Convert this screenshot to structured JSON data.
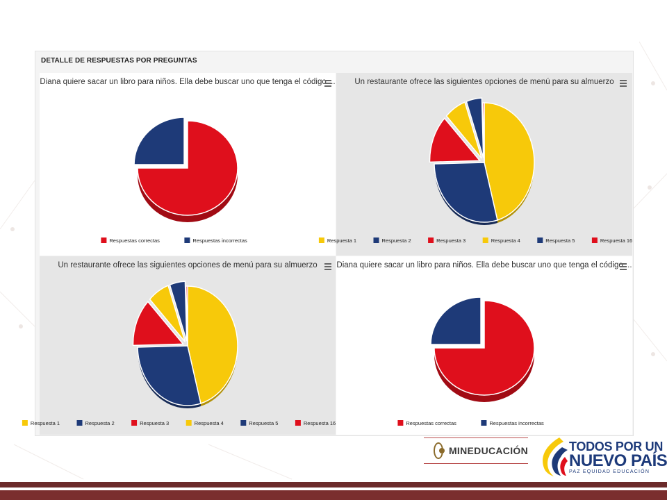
{
  "page": {
    "panel_title": "DETALLE DE RESPUESTAS POR PREGUNTAS"
  },
  "logos": {
    "mineducacion": "MINEDUCACIÓN",
    "todos_line1": "TODOS POR UN",
    "todos_line2": "NUEVO PAÍS",
    "todos_line3": "PAZ  EQUIDAD  EDUCACIÓN"
  },
  "colors": {
    "red": "#df0f1c",
    "navy": "#1e3a78",
    "yellow": "#f7c90a",
    "chart_bg_gray": "#e6e6e6",
    "chart_bg_white": "#ffffff",
    "footer_brown": "#7a2e2e"
  },
  "chart_data": [
    {
      "type": "pie",
      "style": "3d",
      "title": "Diana quiere sacar un libro para niños. Ella debe buscar uno que tenga el código ...",
      "categories": [
        "Respuestas correctas",
        "Respuestas incorrectas"
      ],
      "values": [
        75,
        25
      ],
      "colors": [
        "#df0f1c",
        "#1e3a78"
      ],
      "exploded": [
        false,
        true
      ],
      "legend": "bottom",
      "background": "#ffffff"
    },
    {
      "type": "pie",
      "style": "3d",
      "title": "Un restaurante ofrece las siguientes opciones de menú para su almuerzo",
      "categories": [
        "Respuesta 1",
        "Respuesta 2",
        "Respuesta 3",
        "Respuesta 4",
        "Respuesta 5",
        "Respuesta 16"
      ],
      "values": [
        46,
        29,
        13,
        7,
        5,
        0.5
      ],
      "colors": [
        "#f7c90a",
        "#1e3a78",
        "#df0f1c",
        "#f7c90a",
        "#1e3a78",
        "#df0f1c"
      ],
      "exploded": [
        false,
        false,
        true,
        true,
        true,
        false
      ],
      "legend": "bottom",
      "background": "#e6e6e6"
    },
    {
      "type": "pie",
      "style": "3d",
      "title": "Un restaurante ofrece las siguientes opciones de menú para su almuerzo",
      "categories": [
        "Respuesta 1",
        "Respuesta 2",
        "Respuesta 3",
        "Respuesta 4",
        "Respuesta 5",
        "Respuesta 16"
      ],
      "values": [
        46,
        29,
        13,
        7,
        5,
        0.5
      ],
      "colors": [
        "#f7c90a",
        "#1e3a78",
        "#df0f1c",
        "#f7c90a",
        "#1e3a78",
        "#df0f1c"
      ],
      "exploded": [
        false,
        false,
        true,
        true,
        true,
        false
      ],
      "legend": "bottom",
      "background": "#e6e6e6"
    },
    {
      "type": "pie",
      "style": "3d",
      "title": "Diana quiere sacar un libro para niños. Ella debe buscar uno que tenga el código ...",
      "categories": [
        "Respuestas correctas",
        "Respuestas incorrectas"
      ],
      "values": [
        75,
        25
      ],
      "colors": [
        "#df0f1c",
        "#1e3a78"
      ],
      "exploded": [
        false,
        true
      ],
      "legend": "bottom",
      "background": "#ffffff"
    }
  ]
}
